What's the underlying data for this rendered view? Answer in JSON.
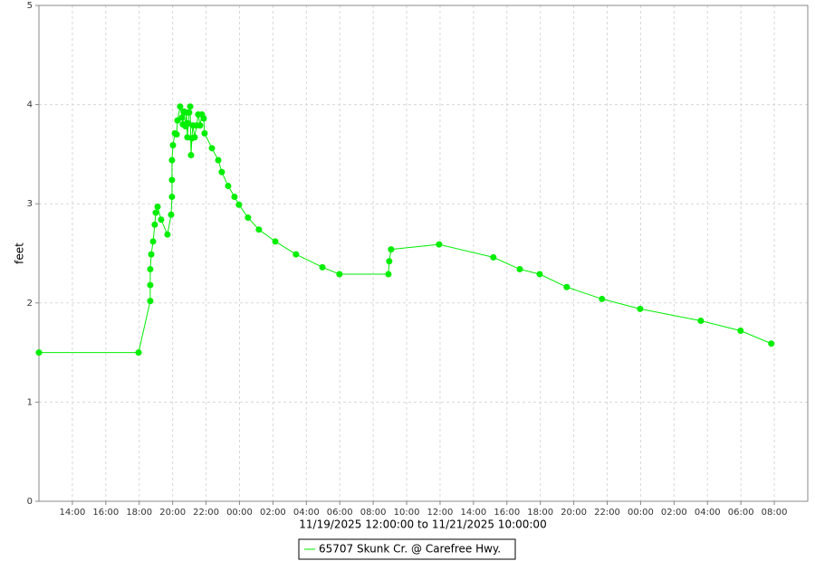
{
  "chart_data": {
    "type": "line",
    "y_label": "feet",
    "x_label": "11/19/2025 12:00:00 to 11/21/2025 10:00:00",
    "xlim": [
      0,
      46
    ],
    "ylim": [
      0,
      5
    ],
    "xticks": [
      {
        "value": 2,
        "label": "14:00"
      },
      {
        "value": 4,
        "label": "16:00"
      },
      {
        "value": 6,
        "label": "18:00"
      },
      {
        "value": 8,
        "label": "20:00"
      },
      {
        "value": 10,
        "label": "22:00"
      },
      {
        "value": 12,
        "label": "00:00"
      },
      {
        "value": 14,
        "label": "02:00"
      },
      {
        "value": 16,
        "label": "04:00"
      },
      {
        "value": 18,
        "label": "06:00"
      },
      {
        "value": 20,
        "label": "08:00"
      },
      {
        "value": 22,
        "label": "10:00"
      },
      {
        "value": 24,
        "label": "12:00"
      },
      {
        "value": 26,
        "label": "14:00"
      },
      {
        "value": 28,
        "label": "16:00"
      },
      {
        "value": 30,
        "label": "18:00"
      },
      {
        "value": 32,
        "label": "20:00"
      },
      {
        "value": 34,
        "label": "22:00"
      },
      {
        "value": 36,
        "label": "00:00"
      },
      {
        "value": 38,
        "label": "02:00"
      },
      {
        "value": 40,
        "label": "04:00"
      },
      {
        "value": 42,
        "label": "06:00"
      },
      {
        "value": 44,
        "label": "08:00"
      }
    ],
    "yticks": [
      0,
      1,
      2,
      3,
      4,
      5
    ],
    "grid": true,
    "legend": "bottom",
    "series": [
      {
        "name": "65707 Skunk Cr. @ Carefree Hwy.",
        "color": "#00ee00",
        "x": [
          0,
          5.96,
          6.66,
          6.66,
          6.66,
          6.72,
          6.83,
          6.93,
          6.99,
          7.1,
          7.31,
          7.69,
          7.91,
          7.96,
          7.96,
          7.96,
          8.02,
          8.13,
          8.24,
          8.29,
          8.45,
          8.56,
          8.61,
          8.67,
          8.78,
          8.83,
          8.88,
          8.94,
          8.99,
          9.05,
          9.1,
          9.15,
          9.21,
          9.32,
          9.43,
          9.53,
          9.64,
          9.75,
          9.86,
          9.91,
          10.35,
          10.73,
          10.94,
          11.32,
          11.7,
          11.97,
          12.51,
          13.16,
          14.14,
          15.38,
          16.96,
          17.98,
          20.91,
          20.96,
          21.07,
          23.94,
          27.19,
          28.77,
          29.96,
          31.58,
          33.69,
          35.97,
          39.6,
          41.98,
          43.82
        ],
        "values": [
          1.5,
          1.5,
          2.02,
          2.18,
          2.34,
          2.49,
          2.62,
          2.79,
          2.91,
          2.97,
          2.84,
          2.69,
          2.89,
          3.07,
          3.24,
          3.44,
          3.59,
          3.71,
          3.7,
          3.84,
          3.98,
          3.87,
          3.8,
          3.93,
          3.78,
          3.92,
          3.67,
          3.81,
          3.92,
          3.98,
          3.49,
          3.66,
          3.79,
          3.67,
          3.79,
          3.9,
          3.79,
          3.9,
          3.86,
          3.71,
          3.56,
          3.44,
          3.32,
          3.18,
          3.07,
          2.99,
          2.86,
          2.74,
          2.62,
          2.49,
          2.36,
          2.29,
          2.29,
          2.42,
          2.54,
          2.59,
          2.46,
          2.34,
          2.29,
          2.16,
          2.04,
          1.94,
          1.82,
          1.72,
          1.59
        ]
      }
    ]
  }
}
